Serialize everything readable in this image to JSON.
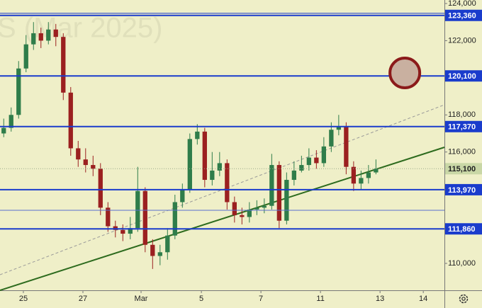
{
  "chart_data": {
    "type": "candlestick",
    "watermark": "S (Mar 2025)",
    "xlim": [
      -0.5,
      59.2
    ],
    "ylim": [
      108550,
      124190
    ],
    "xticks": [
      {
        "value": 2.64,
        "label": "25"
      },
      {
        "value": 10.64,
        "label": "27"
      },
      {
        "value": 18.45,
        "label": "Mar"
      },
      {
        "value": 26.55,
        "label": "5"
      },
      {
        "value": 34.55,
        "label": "7"
      },
      {
        "value": 42.55,
        "label": "11"
      },
      {
        "value": 50.55,
        "label": "13"
      },
      {
        "value": 56.36,
        "label": "14"
      }
    ],
    "yticks": [
      {
        "value": 124000,
        "label": "124,000"
      },
      {
        "value": 122000,
        "label": "122,000"
      },
      {
        "value": 118000,
        "label": "118,000"
      },
      {
        "value": 116000,
        "label": "116,000"
      },
      {
        "value": 110000,
        "label": "110,000"
      }
    ],
    "up_color": "#2f7d4a",
    "down_color": "#9b2020",
    "x": [
      0,
      1,
      2,
      3,
      4,
      5,
      6,
      7,
      8,
      9,
      10,
      11,
      12,
      13,
      14,
      15,
      16,
      17,
      18,
      19,
      20,
      21,
      22,
      23,
      24,
      25,
      26,
      27,
      28,
      29,
      30,
      31,
      32,
      33,
      34,
      35,
      36,
      37,
      38,
      39,
      40,
      41,
      42,
      43,
      44,
      45,
      46,
      47,
      48,
      49,
      50
    ],
    "open": [
      117000,
      117300,
      118000,
      120500,
      121800,
      122400,
      122000,
      122600,
      122200,
      119200,
      116200,
      115600,
      115300,
      115100,
      113000,
      112000,
      111800,
      111600,
      111900,
      113900,
      111000,
      110400,
      110600,
      111500,
      113300,
      114000,
      116700,
      117100,
      114500,
      115000,
      115400,
      113300,
      112600,
      112500,
      112900,
      113000,
      113100,
      115300,
      112300,
      114500,
      115000,
      115300,
      115700,
      115400,
      116300,
      117200,
      117400,
      115200,
      114300,
      114600,
      114900
    ],
    "high": [
      117800,
      118400,
      120900,
      122300,
      123000,
      122700,
      123000,
      122900,
      122400,
      119500,
      116600,
      116200,
      115800,
      115400,
      113300,
      112300,
      112100,
      112500,
      115200,
      114100,
      111300,
      111000,
      111900,
      113700,
      114300,
      117000,
      117500,
      117300,
      116000,
      116000,
      115600,
      113600,
      113000,
      113300,
      113400,
      113500,
      115900,
      115500,
      114900,
      115500,
      115800,
      116200,
      116100,
      116800,
      117600,
      118000,
      117600,
      115500,
      115000,
      115300,
      115600
    ],
    "low": [
      116800,
      117100,
      117800,
      120300,
      121500,
      121600,
      121800,
      121700,
      118800,
      115800,
      115200,
      114900,
      114700,
      112600,
      111700,
      111400,
      111200,
      111300,
      111700,
      110600,
      109700,
      109900,
      110200,
      111300,
      113000,
      113800,
      116400,
      114100,
      114200,
      114700,
      112900,
      112200,
      112100,
      112200,
      112600,
      112700,
      112900,
      111900,
      112100,
      114200,
      114900,
      115000,
      115100,
      115200,
      116000,
      116900,
      114800,
      113900,
      114000,
      114300,
      114800
    ],
    "close": [
      117300,
      118000,
      120500,
      121800,
      122400,
      122000,
      122600,
      122200,
      119200,
      116200,
      115600,
      115300,
      115100,
      113000,
      112000,
      111800,
      111600,
      111900,
      113900,
      111000,
      110400,
      110600,
      111500,
      113300,
      114000,
      116700,
      117100,
      114500,
      115000,
      115400,
      113300,
      112600,
      112500,
      112900,
      113000,
      113100,
      115300,
      112300,
      114500,
      115000,
      115300,
      115700,
      115400,
      116300,
      117200,
      117400,
      115200,
      114300,
      114600,
      114900,
      115100
    ],
    "levels": [
      {
        "value": 123360,
        "label": "123,360",
        "color": "#1a3ccc"
      },
      {
        "value": 120100,
        "label": "120,100",
        "color": "#1a3ccc"
      },
      {
        "value": 117370,
        "label": "117,370",
        "color": "#1a3ccc"
      },
      {
        "value": 113970,
        "label": "113,970",
        "color": "#1a3ccc"
      },
      {
        "value": 112860,
        "color": "#5a6fd0"
      },
      {
        "value": 111860,
        "label": "111,860",
        "color": "#1a3ccc"
      }
    ],
    "last_price": {
      "value": 115100,
      "label": "115,100",
      "color": "#c9d7a6"
    },
    "trendlines": [
      {
        "x": [
          -0.5,
          59.2
        ],
        "y": [
          108550,
          116256
        ],
        "color": "#2d6b1e",
        "dash": false
      },
      {
        "x": [
          -0.5,
          59.2
        ],
        "y": [
          109390,
          118545
        ],
        "color": "#999999",
        "dash": true
      }
    ],
    "circle": {
      "x": 53.88,
      "y": 120260,
      "color": "#8b1a1a",
      "fill": "#c9b0a0"
    }
  }
}
